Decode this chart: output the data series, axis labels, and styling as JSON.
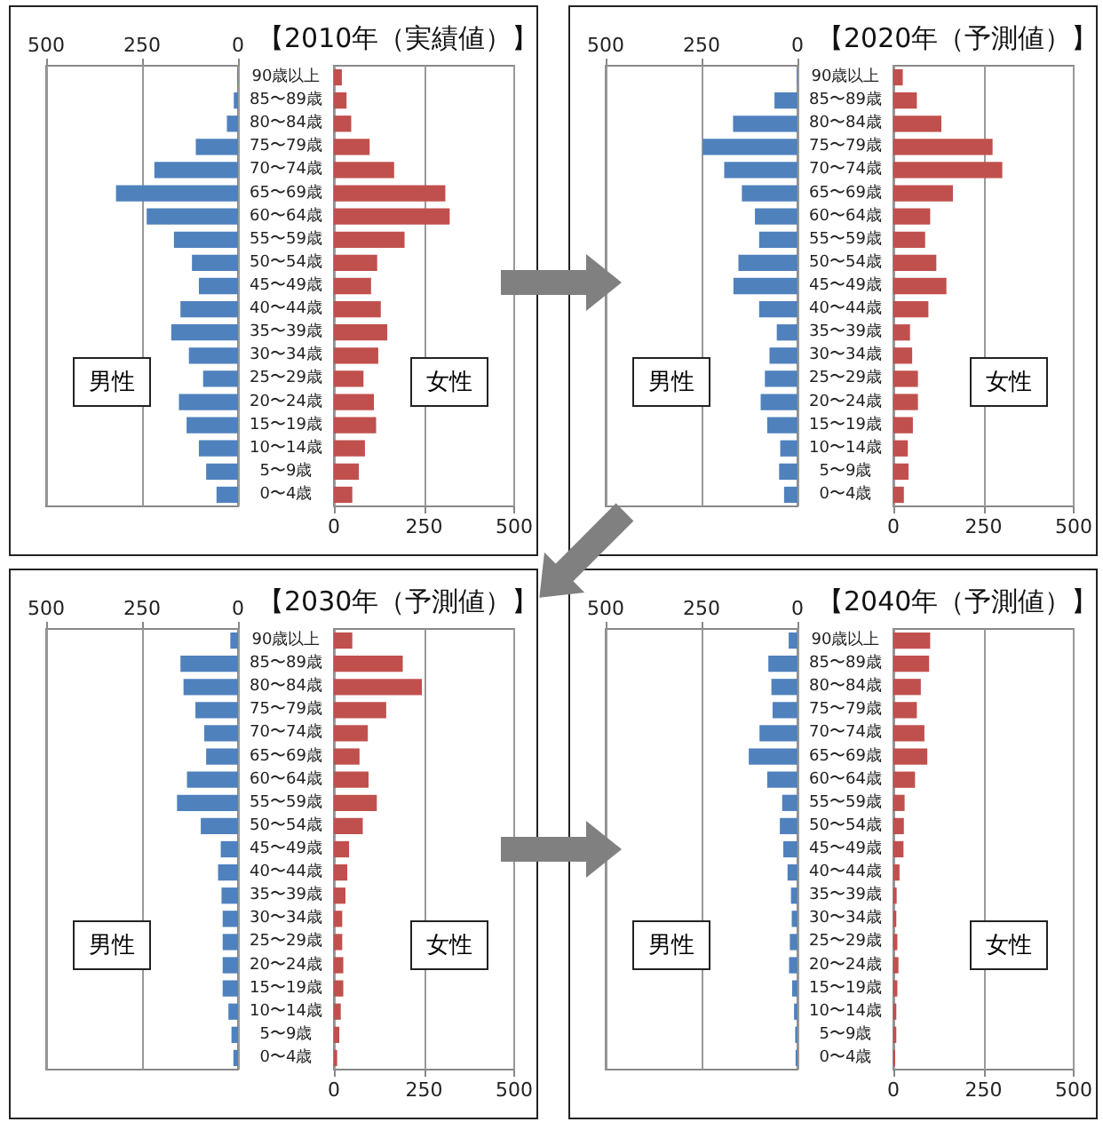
{
  "chart_data": [
    {
      "type": "bar",
      "orientation": "horizontal",
      "categories": [
        "90歳以上",
        "85〜89歳",
        "80〜84歳",
        "75〜79歳",
        "70〜74歳",
        "65〜69歳",
        "60〜64歳",
        "55〜59歳",
        "50〜54歳",
        "45〜49歳",
        "40〜44歳",
        "35〜39歳",
        "30〜34歳",
        "25〜29歳",
        "20〜24歳",
        "15〜19歳",
        "10〜14歳",
        "5〜9歳",
        "0〜4歳"
      ],
      "series": [
        {
          "color": "#4f81bd",
          "values": [
            2,
            11,
            29,
            110,
            218,
            318,
            238,
            167,
            120,
            102,
            150,
            174,
            128,
            91,
            154,
            134,
            102,
            83,
            56
          ]
        }
      ],
      "xlim": [
        500,
        0
      ],
      "xticks": [
        500,
        250,
        0
      ],
      "grid": "x",
      "annotations": [
        "男性"
      ]
    },
    {
      "type": "bar",
      "orientation": "horizontal",
      "title": "【2010年（実績値）】",
      "categories": [
        null,
        null,
        null,
        null,
        null,
        null,
        null,
        null,
        null,
        null,
        null,
        null,
        null,
        null,
        null,
        null,
        null,
        null,
        null
      ],
      "series": [
        {
          "color": "#c0504d",
          "values": [
            22,
            35,
            48,
            99,
            167,
            309,
            321,
            196,
            120,
            103,
            130,
            148,
            123,
            82,
            111,
            117,
            86,
            69,
            51
          ]
        }
      ],
      "xlim": [
        0,
        500
      ],
      "xticks": [
        0,
        250,
        500
      ],
      "grid": "x",
      "tick_labels": "x",
      "annotations": [
        "女性"
      ]
    },
    {
      "type": "bar",
      "orientation": "horizontal",
      "categories": [
        "90歳以上",
        "85〜89歳",
        "80〜84歳",
        "75〜79歳",
        "70〜74歳",
        "65〜69歳",
        "60〜64歳",
        "55〜59歳",
        "50〜54歳",
        "45〜49歳",
        "40〜44歳",
        "35〜39歳",
        "30〜34歳",
        "25〜29歳",
        "20〜24歳",
        "15〜19歳",
        "10〜14歳",
        "5〜9歳",
        "0〜4歳"
      ],
      "series": [
        {
          "color": "#4f81bd",
          "values": [
            2,
            60,
            168,
            247,
            191,
            145,
            111,
            100,
            154,
            167,
            100,
            54,
            73,
            85,
            96,
            79,
            45,
            48,
            35
          ]
        }
      ],
      "xlim": [
        500,
        0
      ],
      "xticks": [
        500,
        250,
        0
      ],
      "grid": "x",
      "annotations": [
        "男性"
      ]
    },
    {
      "type": "bar",
      "orientation": "horizontal",
      "title": "【2020年（予測値）】",
      "categories": [
        null,
        null,
        null,
        null,
        null,
        null,
        null,
        null,
        null,
        null,
        null,
        null,
        null,
        null,
        null,
        null,
        null,
        null,
        null
      ],
      "series": [
        {
          "color": "#c0504d",
          "values": [
            26,
            65,
            133,
            275,
            302,
            165,
            102,
            88,
            119,
            147,
            97,
            46,
            52,
            68,
            68,
            54,
            40,
            42,
            29
          ]
        }
      ],
      "xlim": [
        0,
        500
      ],
      "xticks": [
        0,
        250,
        500
      ],
      "grid": "x",
      "tick_labels": "x",
      "annotations": [
        "女性"
      ]
    },
    {
      "type": "bar",
      "orientation": "horizontal",
      "categories": [
        "90歳以上",
        "85〜89歳",
        "80〜84歳",
        "75〜79歳",
        "70〜74歳",
        "65〜69歳",
        "60〜64歳",
        "55〜59歳",
        "50〜54歳",
        "45〜49歳",
        "40〜44歳",
        "35〜39歳",
        "30〜34歳",
        "25〜29歳",
        "20〜24歳",
        "15〜19歳",
        "10〜14歳",
        "5〜9歳",
        "0〜4歳"
      ],
      "series": [
        {
          "color": "#4f81bd",
          "values": [
            20,
            150,
            142,
            111,
            88,
            83,
            133,
            159,
            97,
            45,
            52,
            43,
            40,
            40,
            40,
            40,
            25,
            17,
            12
          ]
        }
      ],
      "xlim": [
        500,
        0
      ],
      "xticks": [
        500,
        250,
        0
      ],
      "grid": "x",
      "annotations": [
        "男性"
      ]
    },
    {
      "type": "bar",
      "orientation": "horizontal",
      "title": "【2030年（予測値）】",
      "categories": [
        null,
        null,
        null,
        null,
        null,
        null,
        null,
        null,
        null,
        null,
        null,
        null,
        null,
        null,
        null,
        null,
        null,
        null,
        null
      ],
      "series": [
        {
          "color": "#c0504d",
          "values": [
            51,
            191,
            244,
            145,
            94,
            71,
            96,
            119,
            80,
            42,
            37,
            32,
            23,
            23,
            26,
            26,
            19,
            15,
            9
          ]
        }
      ],
      "xlim": [
        0,
        500
      ],
      "xticks": [
        0,
        250,
        500
      ],
      "grid": "x",
      "tick_labels": "x",
      "annotations": [
        "女性"
      ]
    },
    {
      "type": "bar",
      "orientation": "horizontal",
      "categories": [
        "90歳以上",
        "85〜89歳",
        "80〜84歳",
        "75〜79歳",
        "70〜74歳",
        "65〜69歳",
        "60〜64歳",
        "55〜59歳",
        "50〜54歳",
        "45〜49歳",
        "40〜44歳",
        "35〜39歳",
        "30〜34歳",
        "25〜29歳",
        "20〜24歳",
        "15〜19歳",
        "10〜14歳",
        "5〜9歳",
        "0〜4歳"
      ],
      "series": [
        {
          "color": "#4f81bd",
          "values": [
            23,
            76,
            68,
            65,
            99,
            127,
            79,
            40,
            46,
            37,
            26,
            17,
            15,
            20,
            22,
            14,
            9,
            6,
            5
          ]
        }
      ],
      "xlim": [
        500,
        0
      ],
      "xticks": [
        500,
        250,
        0
      ],
      "grid": "x",
      "annotations": [
        "男性"
      ]
    },
    {
      "type": "bar",
      "orientation": "horizontal",
      "title": "【2040年（予測値）】",
      "categories": [
        null,
        null,
        null,
        null,
        null,
        null,
        null,
        null,
        null,
        null,
        null,
        null,
        null,
        null,
        null,
        null,
        null,
        null,
        null
      ],
      "series": [
        {
          "color": "#c0504d",
          "values": [
            102,
            99,
            76,
            65,
            86,
            94,
            60,
            31,
            29,
            28,
            17,
            9,
            8,
            11,
            14,
            11,
            8,
            8,
            5
          ]
        }
      ],
      "xlim": [
        0,
        500
      ],
      "xticks": [
        0,
        250,
        500
      ],
      "grid": "x",
      "tick_labels": "x",
      "annotations": [
        "女性"
      ]
    }
  ]
}
